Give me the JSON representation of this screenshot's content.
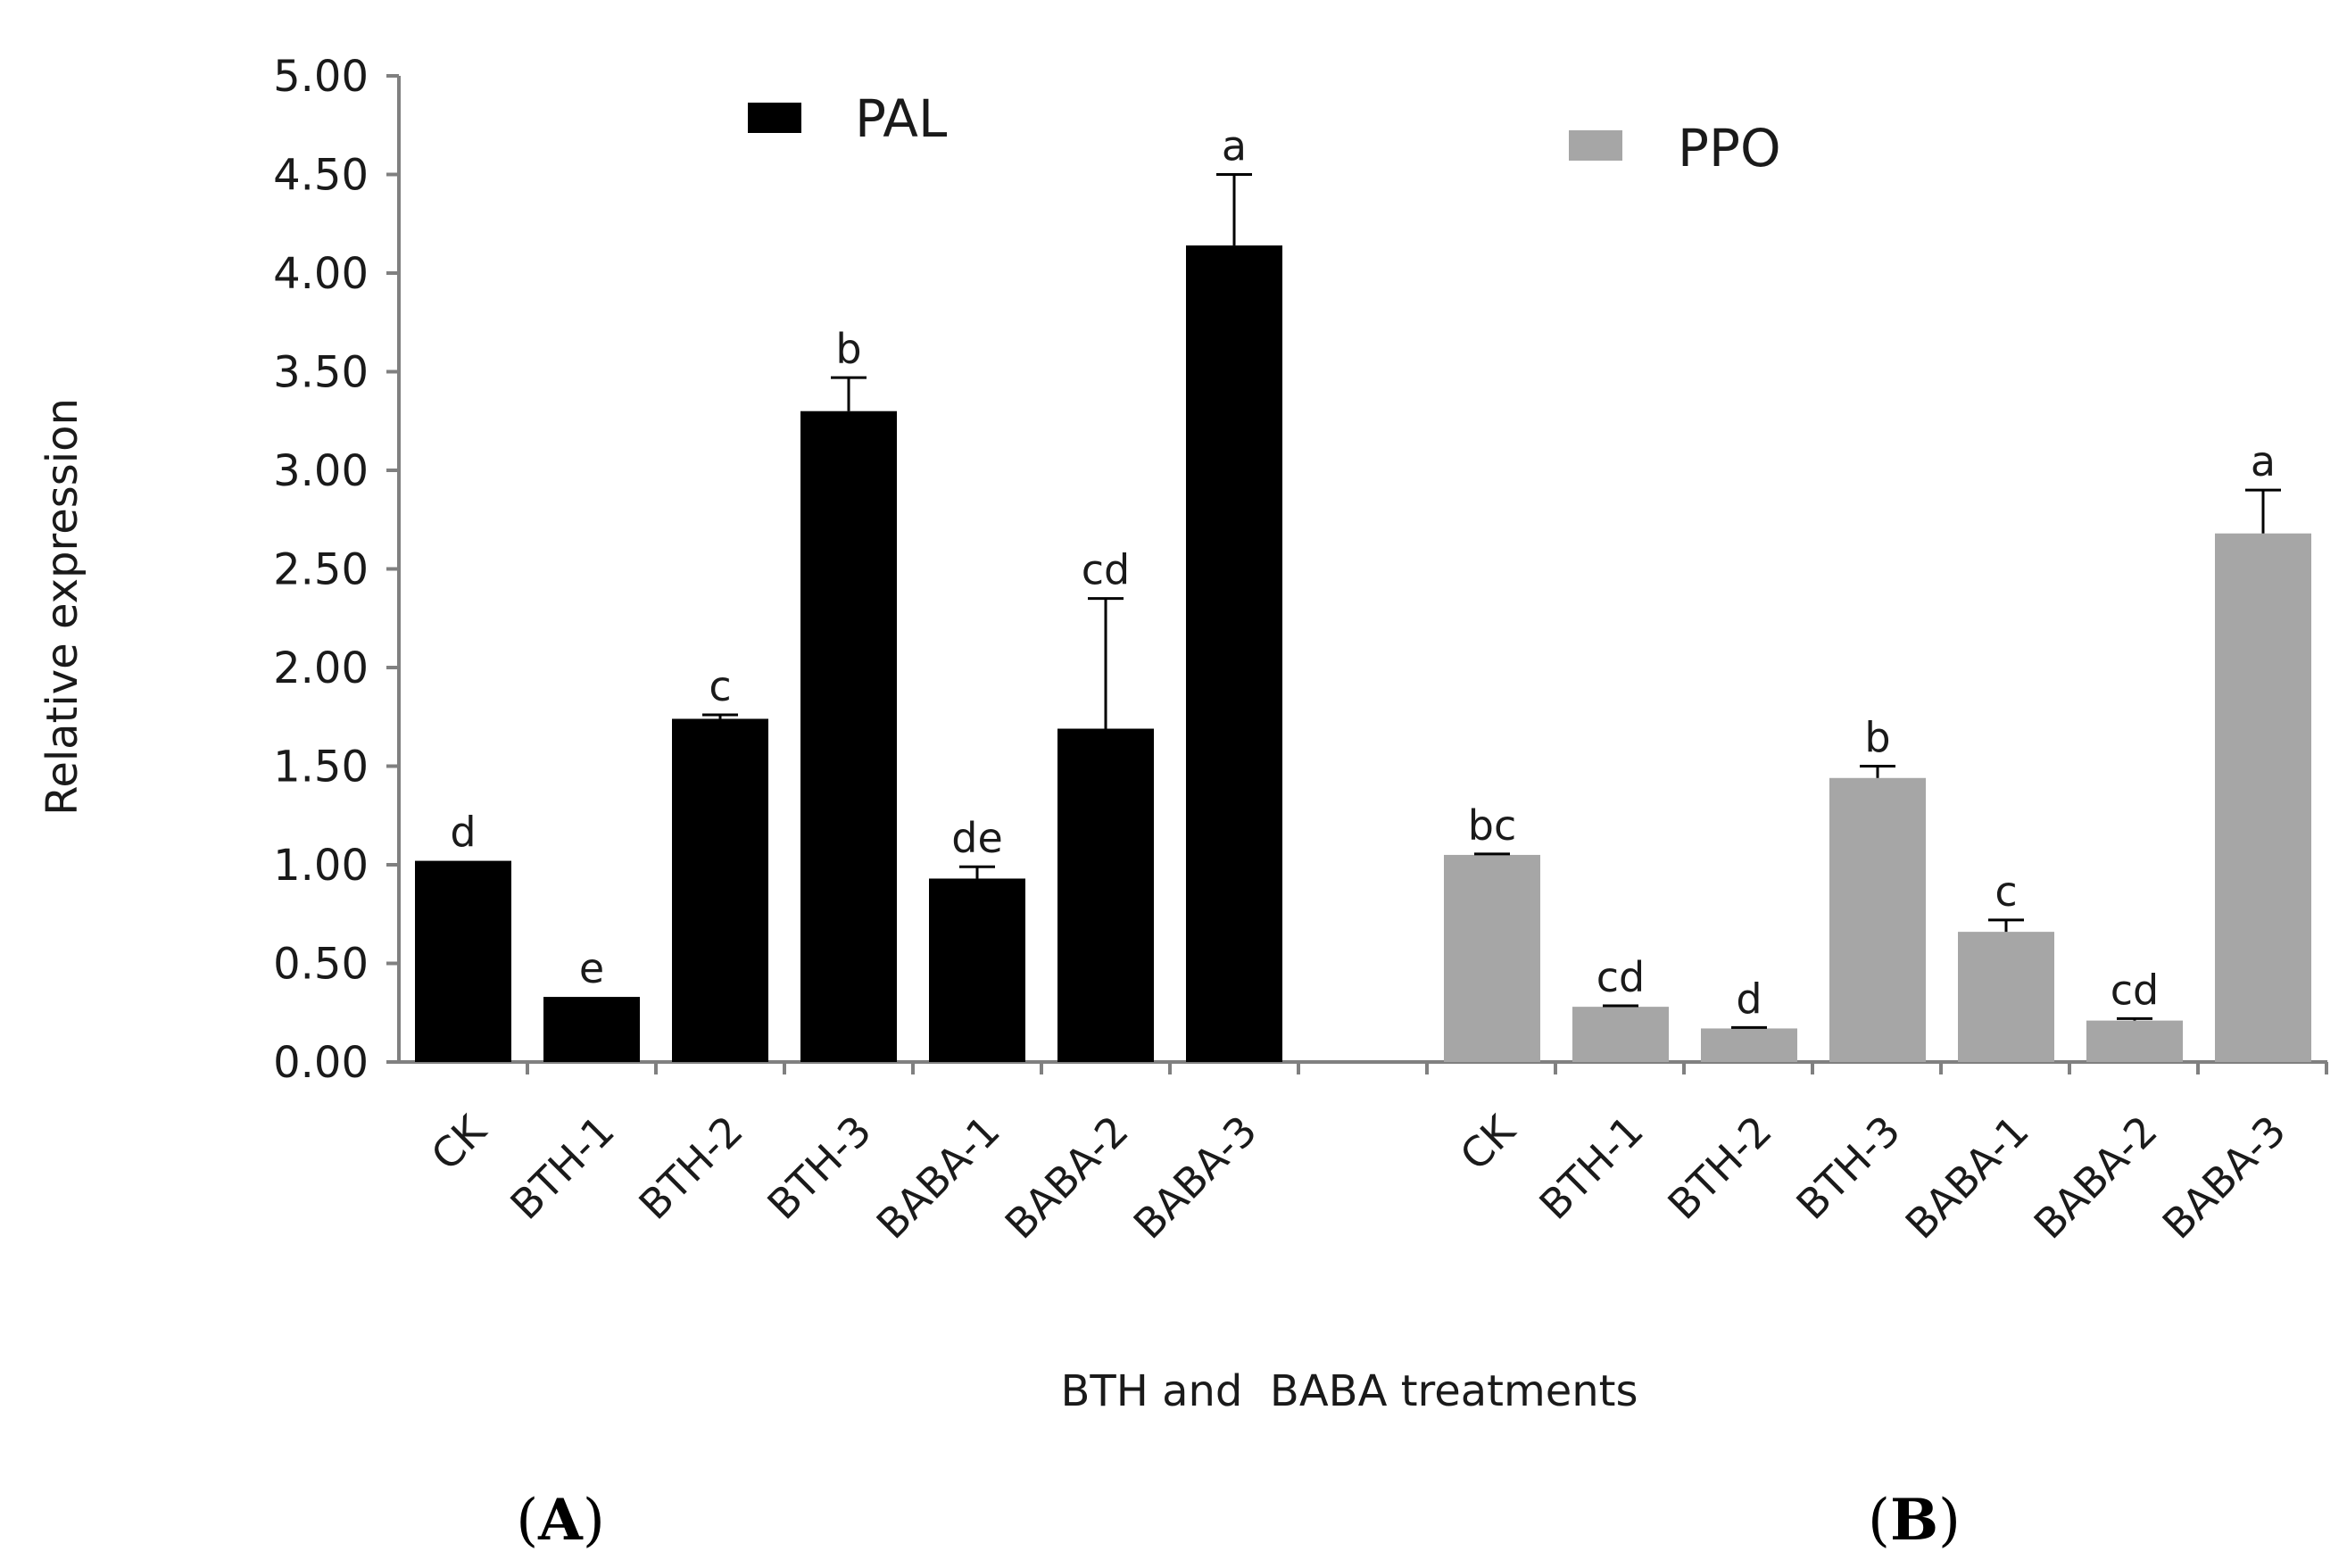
{
  "chart_data": {
    "type": "bar",
    "xlabel": "BTH and  BABA treatments",
    "ylabel": "Relative expression",
    "ylim": [
      0,
      5
    ],
    "ytick_step": 0.5,
    "ytick_labels": [
      "0.00",
      "0.50",
      "1.00",
      "1.50",
      "2.00",
      "2.50",
      "3.00",
      "3.50",
      "4.00",
      "4.50",
      "5.00"
    ],
    "grid": false,
    "legend_placement": "top",
    "series": [
      {
        "name": "PAL",
        "color": "#000000",
        "panel_label": "A",
        "categories": [
          "CK",
          "BTH-1",
          "BTH-2",
          "BTH-3",
          "BABA-1",
          "BABA-2",
          "BABA-3"
        ],
        "values": [
          1.02,
          0.33,
          1.74,
          3.3,
          0.93,
          1.69,
          4.14
        ],
        "errors": [
          0.0,
          0.0,
          0.02,
          0.17,
          0.06,
          0.66,
          0.36
        ],
        "significance": [
          "d",
          "e",
          "c",
          "b",
          "de",
          "cd",
          "a"
        ]
      },
      {
        "name": "PPO",
        "color": "#a6a6a6",
        "panel_label": "B",
        "categories": [
          "CK",
          "BTH-1",
          "BTH-2",
          "BTH-3",
          "BABA-1",
          "BABA-2",
          "BABA-3"
        ],
        "values": [
          1.05,
          0.28,
          0.17,
          1.44,
          0.66,
          0.21,
          2.68
        ],
        "errors": [
          0.005,
          0.005,
          0.005,
          0.06,
          0.06,
          0.01,
          0.22
        ],
        "significance": [
          "bc",
          "cd",
          "d",
          "b",
          "c",
          "cd",
          "a"
        ]
      }
    ]
  }
}
